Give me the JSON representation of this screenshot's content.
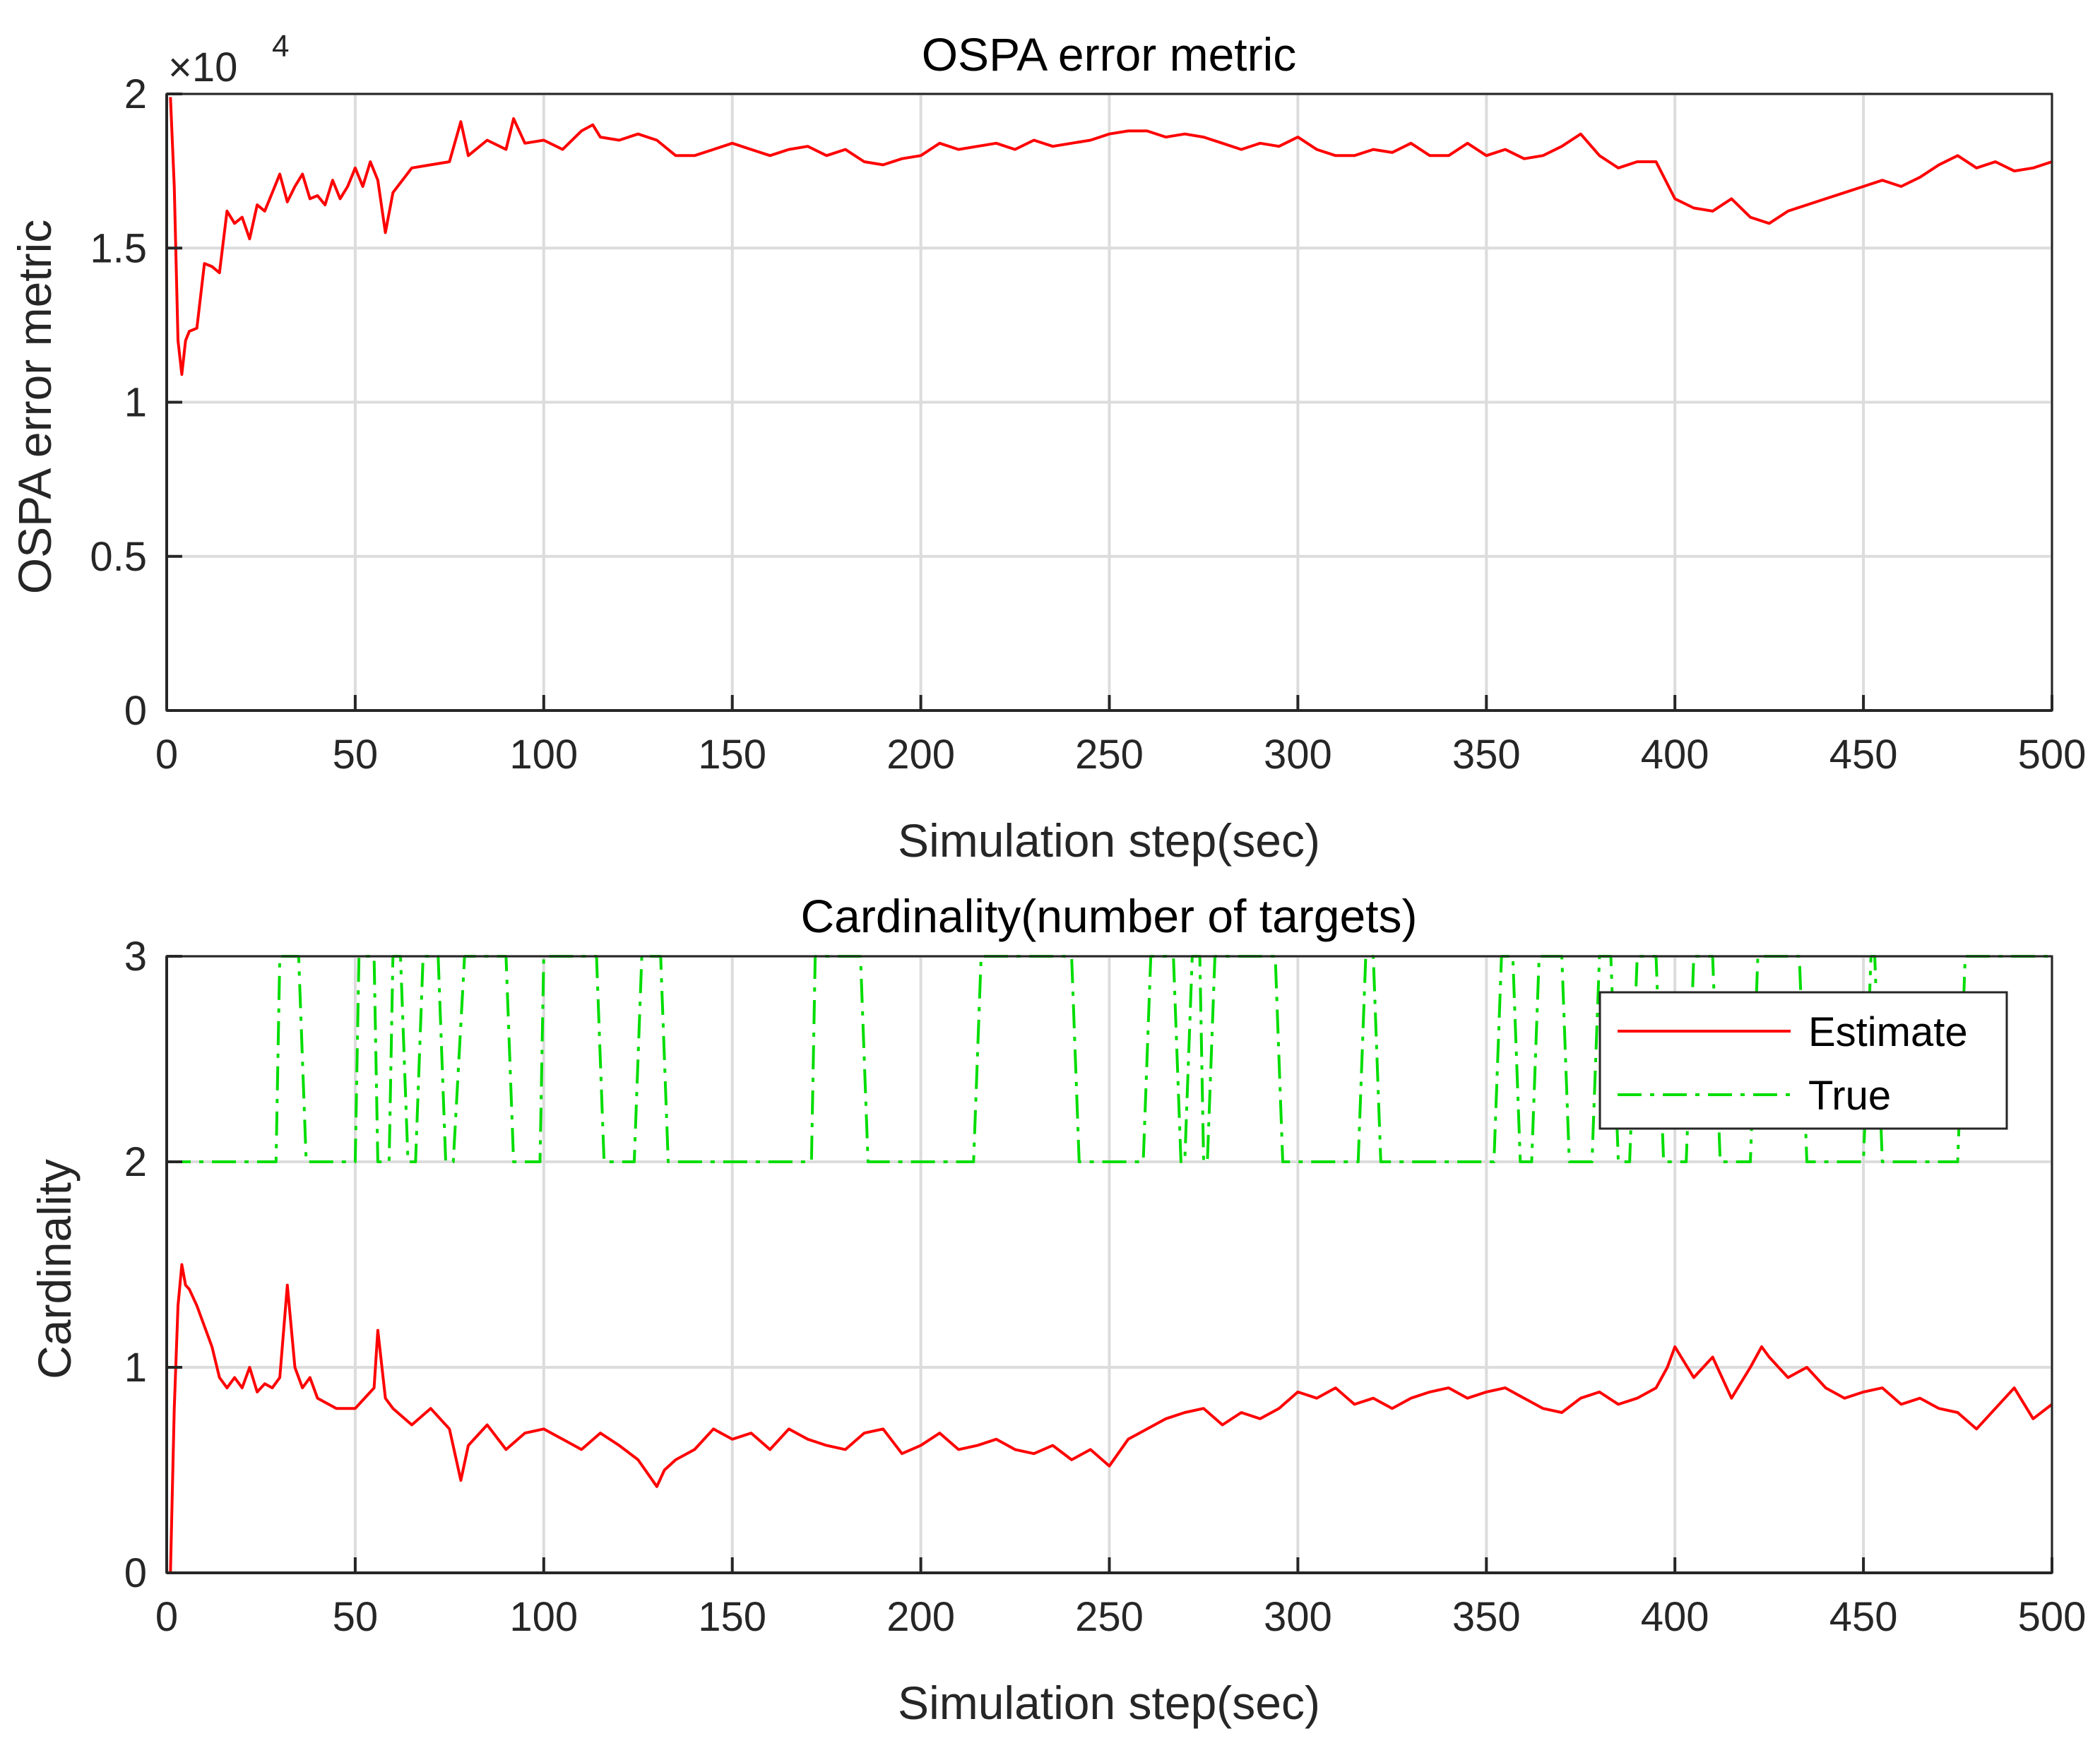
{
  "chart_data": [
    {
      "type": "line",
      "title": "OSPA error metric",
      "xlabel": "Simulation step(sec)",
      "ylabel": "OSPA error metric",
      "xlim": [
        0,
        500
      ],
      "ylim": [
        0,
        2
      ],
      "y_exponent_label": "×10",
      "y_exponent_power": "4",
      "grid": true,
      "x_ticks": [
        "0",
        "50",
        "100",
        "150",
        "200",
        "250",
        "300",
        "350",
        "400",
        "450",
        "500"
      ],
      "y_ticks": [
        "0",
        "0.5",
        "1",
        "1.5",
        "2"
      ],
      "series": [
        {
          "name": "OSPA",
          "color": "#ff0000",
          "x": [
            1,
            2,
            3,
            4,
            5,
            6,
            8,
            10,
            12,
            14,
            16,
            18,
            20,
            22,
            24,
            26,
            28,
            30,
            32,
            34,
            36,
            38,
            40,
            42,
            44,
            46,
            48,
            50,
            52,
            54,
            56,
            58,
            60,
            65,
            70,
            75,
            78,
            80,
            85,
            90,
            92,
            95,
            100,
            105,
            110,
            113,
            115,
            120,
            125,
            130,
            135,
            140,
            145,
            150,
            155,
            160,
            165,
            170,
            175,
            180,
            185,
            190,
            195,
            200,
            205,
            210,
            215,
            220,
            225,
            230,
            235,
            240,
            245,
            250,
            255,
            260,
            265,
            270,
            275,
            280,
            285,
            290,
            295,
            300,
            305,
            310,
            315,
            320,
            325,
            330,
            335,
            340,
            345,
            350,
            355,
            360,
            365,
            370,
            375,
            380,
            385,
            390,
            395,
            400,
            405,
            410,
            415,
            420,
            425,
            430,
            435,
            440,
            445,
            450,
            455,
            460,
            465,
            470,
            475,
            480,
            485,
            490,
            495,
            500
          ],
          "values": [
            1.99,
            1.7,
            1.2,
            1.09,
            1.2,
            1.23,
            1.24,
            1.45,
            1.44,
            1.42,
            1.62,
            1.58,
            1.6,
            1.53,
            1.64,
            1.62,
            1.68,
            1.74,
            1.65,
            1.7,
            1.74,
            1.66,
            1.67,
            1.64,
            1.72,
            1.66,
            1.7,
            1.76,
            1.7,
            1.78,
            1.72,
            1.55,
            1.68,
            1.76,
            1.77,
            1.78,
            1.91,
            1.8,
            1.85,
            1.82,
            1.92,
            1.84,
            1.85,
            1.82,
            1.88,
            1.9,
            1.86,
            1.85,
            1.87,
            1.85,
            1.8,
            1.8,
            1.82,
            1.84,
            1.82,
            1.8,
            1.82,
            1.83,
            1.8,
            1.82,
            1.78,
            1.77,
            1.79,
            1.8,
            1.84,
            1.82,
            1.83,
            1.84,
            1.82,
            1.85,
            1.83,
            1.84,
            1.85,
            1.87,
            1.88,
            1.88,
            1.86,
            1.87,
            1.86,
            1.84,
            1.82,
            1.84,
            1.83,
            1.86,
            1.82,
            1.8,
            1.8,
            1.82,
            1.81,
            1.84,
            1.8,
            1.8,
            1.84,
            1.8,
            1.82,
            1.79,
            1.8,
            1.83,
            1.87,
            1.8,
            1.76,
            1.78,
            1.78,
            1.66,
            1.63,
            1.62,
            1.66,
            1.6,
            1.58,
            1.62,
            1.64,
            1.66,
            1.68,
            1.7,
            1.72,
            1.7,
            1.73,
            1.77,
            1.8,
            1.76,
            1.78,
            1.75,
            1.76,
            1.78
          ]
        }
      ]
    },
    {
      "type": "line",
      "title": "Cardinality(number of targets)",
      "xlabel": "Simulation step(sec)",
      "ylabel": "Cardinality",
      "xlim": [
        0,
        500
      ],
      "ylim": [
        0,
        3
      ],
      "grid": true,
      "legend_position": "top-right",
      "x_ticks": [
        "0",
        "50",
        "100",
        "150",
        "200",
        "250",
        "300",
        "350",
        "400",
        "450",
        "500"
      ],
      "y_ticks": [
        "0",
        "1",
        "2",
        "3"
      ],
      "series": [
        {
          "name": "Estimate",
          "color": "#ff0000",
          "style": "solid",
          "x": [
            1,
            2,
            3,
            4,
            5,
            6,
            8,
            10,
            12,
            14,
            16,
            18,
            20,
            22,
            24,
            26,
            28,
            30,
            32,
            34,
            36,
            38,
            40,
            45,
            50,
            55,
            56,
            58,
            60,
            65,
            70,
            75,
            78,
            80,
            85,
            90,
            95,
            100,
            105,
            110,
            115,
            120,
            125,
            130,
            132,
            135,
            140,
            145,
            150,
            155,
            160,
            165,
            170,
            175,
            180,
            185,
            190,
            195,
            200,
            205,
            210,
            215,
            220,
            225,
            230,
            235,
            240,
            245,
            250,
            255,
            260,
            265,
            270,
            275,
            280,
            285,
            290,
            295,
            300,
            305,
            310,
            315,
            320,
            325,
            330,
            335,
            340,
            345,
            350,
            355,
            360,
            365,
            370,
            375,
            380,
            385,
            390,
            395,
            398,
            400,
            405,
            410,
            415,
            420,
            423,
            425,
            430,
            435,
            440,
            445,
            450,
            455,
            460,
            465,
            470,
            475,
            480,
            485,
            490,
            495,
            500
          ],
          "values": [
            0,
            0.8,
            1.3,
            1.5,
            1.4,
            1.38,
            1.3,
            1.2,
            1.1,
            0.95,
            0.9,
            0.95,
            0.9,
            1.0,
            0.88,
            0.92,
            0.9,
            0.95,
            1.4,
            1.0,
            0.9,
            0.95,
            0.85,
            0.8,
            0.8,
            0.9,
            1.18,
            0.85,
            0.8,
            0.72,
            0.8,
            0.7,
            0.45,
            0.62,
            0.72,
            0.6,
            0.68,
            0.7,
            0.65,
            0.6,
            0.68,
            0.62,
            0.55,
            0.42,
            0.5,
            0.55,
            0.6,
            0.7,
            0.65,
            0.68,
            0.6,
            0.7,
            0.65,
            0.62,
            0.6,
            0.68,
            0.7,
            0.58,
            0.62,
            0.68,
            0.6,
            0.62,
            0.65,
            0.6,
            0.58,
            0.62,
            0.55,
            0.6,
            0.52,
            0.65,
            0.7,
            0.75,
            0.78,
            0.8,
            0.72,
            0.78,
            0.75,
            0.8,
            0.88,
            0.85,
            0.9,
            0.82,
            0.85,
            0.8,
            0.85,
            0.88,
            0.9,
            0.85,
            0.88,
            0.9,
            0.85,
            0.8,
            0.78,
            0.85,
            0.88,
            0.82,
            0.85,
            0.9,
            1.0,
            1.1,
            0.95,
            1.05,
            0.85,
            1.0,
            1.1,
            1.05,
            0.95,
            1.0,
            0.9,
            0.85,
            0.88,
            0.9,
            0.82,
            0.85,
            0.8,
            0.78,
            0.7,
            0.8,
            0.9,
            0.75,
            0.82
          ]
        },
        {
          "name": "True",
          "color": "#00dd00",
          "style": "dash-dot",
          "x": [
            0,
            25,
            29,
            30,
            35,
            37,
            50,
            51,
            55,
            56,
            59,
            60,
            62,
            64,
            66,
            68,
            72,
            74,
            76,
            79,
            90,
            92,
            99,
            100,
            114,
            116,
            124,
            126,
            131,
            133,
            171,
            172,
            184,
            186,
            214,
            216,
            240,
            242,
            259,
            261,
            267,
            269,
            270,
            272,
            274,
            275,
            276,
            278,
            294,
            296,
            316,
            318,
            320,
            322,
            352,
            354,
            357,
            359,
            362,
            364,
            370,
            372,
            378,
            380,
            383,
            385,
            388,
            390,
            395,
            397,
            403,
            405,
            410,
            412,
            420,
            422,
            433,
            435,
            450,
            452,
            453,
            455,
            475,
            477,
            500
          ],
          "values": [
            2,
            2,
            2,
            3,
            3,
            2,
            2,
            3,
            3,
            2,
            2,
            3,
            3,
            2,
            2,
            3,
            3,
            2,
            2,
            3,
            3,
            2,
            2,
            3,
            3,
            2,
            2,
            3,
            3,
            2,
            2,
            3,
            3,
            2,
            2,
            3,
            3,
            2,
            2,
            3,
            3,
            2,
            2,
            3,
            3,
            2,
            2,
            3,
            3,
            2,
            2,
            3,
            3,
            2,
            2,
            3,
            3,
            2,
            2,
            3,
            3,
            2,
            2,
            3,
            3,
            2,
            2,
            3,
            3,
            2,
            2,
            3,
            3,
            2,
            2,
            3,
            3,
            2,
            2,
            3,
            3,
            2,
            2,
            3,
            3
          ]
        }
      ]
    }
  ]
}
